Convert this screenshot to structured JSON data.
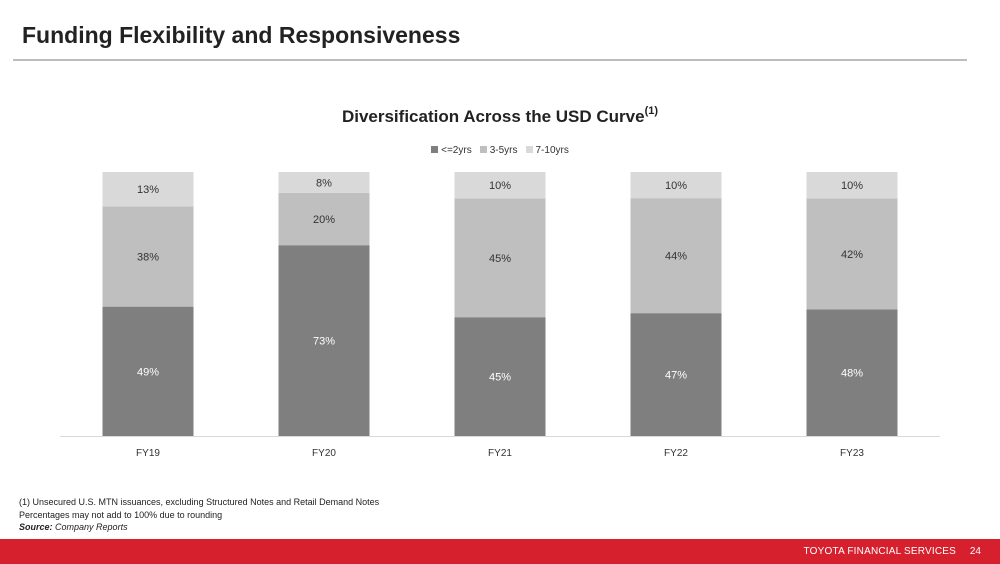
{
  "page": {
    "title": "Funding Flexibility and Responsiveness"
  },
  "footnotes": {
    "note1": "(1)   Unsecured U.S. MTN issuances, excluding Structured Notes and Retail Demand Notes",
    "note2": "Percentages may not add to 100% due to rounding",
    "source_label": "Source:",
    "source_text": "Company Reports"
  },
  "footer": {
    "brand": "TOYOTA FINANCIAL SERVICES",
    "page_number": "24"
  },
  "chart_data": {
    "type": "bar",
    "stacked": true,
    "percent_stacked": true,
    "title": "Diversification Across the USD Curve",
    "title_superscript": "(1)",
    "categories": [
      "FY19",
      "FY20",
      "FY21",
      "FY22",
      "FY23"
    ],
    "series": [
      {
        "name": "<=2yrs",
        "values": [
          49,
          73,
          45,
          47,
          48
        ],
        "color": "#7f7f7f",
        "label_color": "#ffffff"
      },
      {
        "name": "3-5yrs",
        "values": [
          38,
          20,
          45,
          44,
          42
        ],
        "color": "#bfbfbf",
        "label_color": "#333333"
      },
      {
        "name": "7-10yrs",
        "values": [
          13,
          8,
          10,
          10,
          10
        ],
        "color": "#d9d9d9",
        "label_color": "#333333"
      }
    ],
    "value_suffix": "%",
    "legend_position": "top",
    "gridlines": false,
    "y_axis_visible": false
  }
}
